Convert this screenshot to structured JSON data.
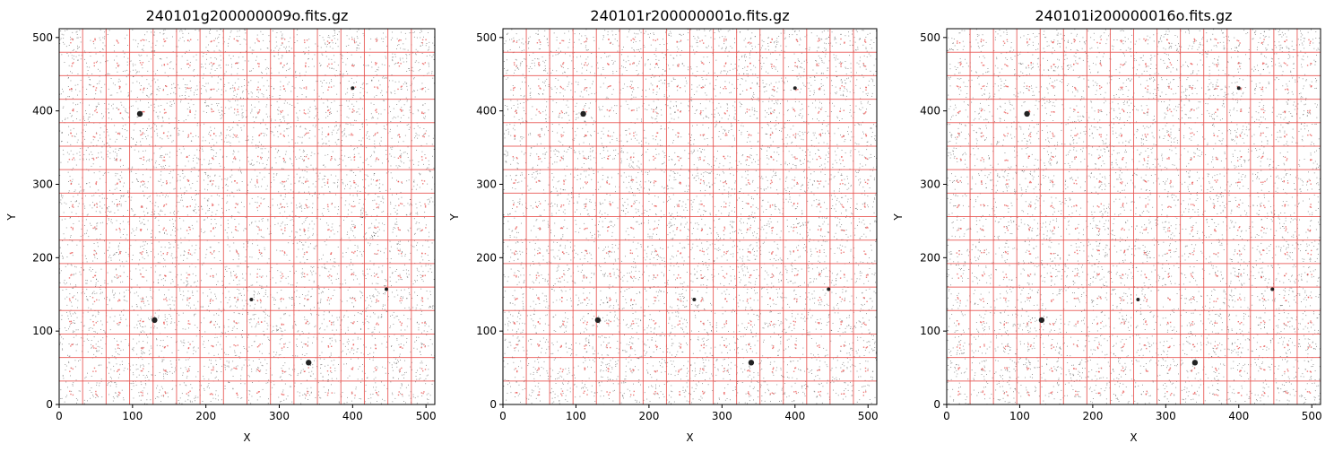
{
  "figure": {
    "colors": {
      "grid": "#e8524f",
      "points": "#222222",
      "markers": "#e8524f"
    }
  },
  "chart_data": [
    {
      "type": "scatter",
      "title": "240101g200000009o.fits.gz",
      "xlabel": "X",
      "ylabel": "Y",
      "xlim": [
        0,
        512
      ],
      "ylim": [
        0,
        512
      ],
      "xticks": [
        0,
        100,
        200,
        300,
        400,
        500
      ],
      "yticks": [
        0,
        100,
        200,
        300,
        400,
        500
      ],
      "grid_lines": [
        32,
        64,
        96,
        128,
        160,
        192,
        224,
        256,
        288,
        320,
        352,
        384,
        416,
        448,
        480
      ],
      "marker_offset": 16,
      "stars": [
        {
          "x": 110,
          "y": 396,
          "size": "large"
        },
        {
          "x": 400,
          "y": 431,
          "size": "small"
        },
        {
          "x": 130,
          "y": 115,
          "size": "large"
        },
        {
          "x": 340,
          "y": 57,
          "size": "large"
        },
        {
          "x": 446,
          "y": 157,
          "size": "small"
        },
        {
          "x": 262,
          "y": 143,
          "size": "small"
        }
      ]
    },
    {
      "type": "scatter",
      "title": "240101r200000001o.fits.gz",
      "xlabel": "X",
      "ylabel": "Y",
      "xlim": [
        0,
        512
      ],
      "ylim": [
        0,
        512
      ],
      "xticks": [
        0,
        100,
        200,
        300,
        400,
        500
      ],
      "yticks": [
        0,
        100,
        200,
        300,
        400,
        500
      ],
      "grid_lines": [
        32,
        64,
        96,
        128,
        160,
        192,
        224,
        256,
        288,
        320,
        352,
        384,
        416,
        448,
        480
      ],
      "marker_offset": 16,
      "stars": [
        {
          "x": 110,
          "y": 396,
          "size": "large"
        },
        {
          "x": 400,
          "y": 431,
          "size": "small"
        },
        {
          "x": 130,
          "y": 115,
          "size": "large"
        },
        {
          "x": 340,
          "y": 57,
          "size": "large"
        },
        {
          "x": 446,
          "y": 157,
          "size": "small"
        },
        {
          "x": 262,
          "y": 143,
          "size": "small"
        }
      ]
    },
    {
      "type": "scatter",
      "title": "240101i200000016o.fits.gz",
      "xlabel": "X",
      "ylabel": "Y",
      "xlim": [
        0,
        512
      ],
      "ylim": [
        0,
        512
      ],
      "xticks": [
        0,
        100,
        200,
        300,
        400,
        500
      ],
      "yticks": [
        0,
        100,
        200,
        300,
        400,
        500
      ],
      "grid_lines": [
        32,
        64,
        96,
        128,
        160,
        192,
        224,
        256,
        288,
        320,
        352,
        384,
        416,
        448,
        480
      ],
      "marker_offset": 16,
      "stars": [
        {
          "x": 110,
          "y": 396,
          "size": "large"
        },
        {
          "x": 400,
          "y": 431,
          "size": "small"
        },
        {
          "x": 130,
          "y": 115,
          "size": "large"
        },
        {
          "x": 340,
          "y": 57,
          "size": "large"
        },
        {
          "x": 446,
          "y": 157,
          "size": "small"
        },
        {
          "x": 262,
          "y": 143,
          "size": "small"
        }
      ]
    }
  ]
}
